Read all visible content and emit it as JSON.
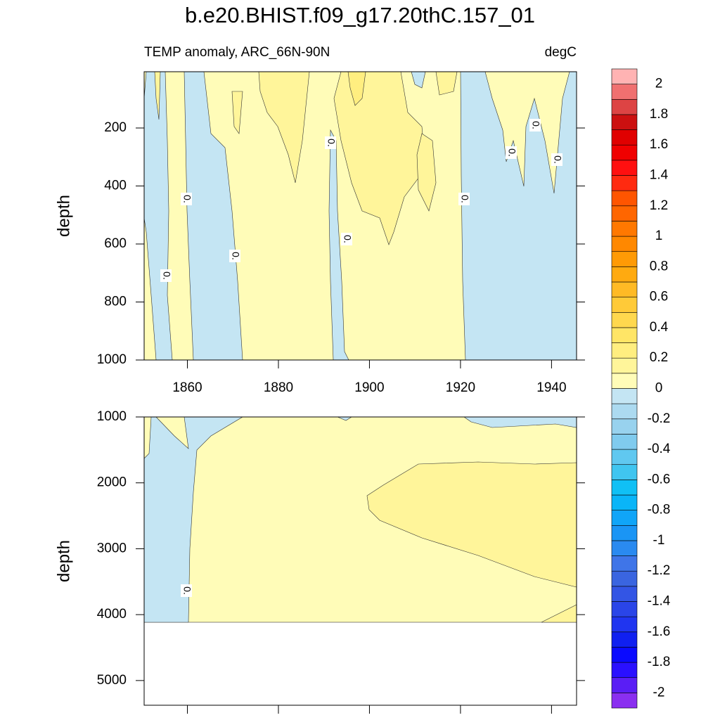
{
  "chart_data": {
    "type": "contour",
    "title": "b.e20.BHIST.f09_g17.20thC.157_01",
    "subtitle_left": "TEMP anomaly, ARC_66N-90N",
    "subtitle_right": "degC",
    "contour_label": "0.",
    "panels": [
      {
        "ylabel": "depth",
        "xlim": [
          1850.5,
          1945.5
        ],
        "xticks": [
          1860,
          1880,
          1900,
          1920,
          1940
        ],
        "show_xtick_labels": true,
        "ylim": [
          6,
          1000
        ],
        "y_reversed": true,
        "yticks": [
          200,
          400,
          600,
          800,
          1000
        ]
      },
      {
        "ylabel": "depth",
        "xlim": [
          1850.5,
          1945.5
        ],
        "xticks": [
          1860,
          1880,
          1900,
          1920,
          1940
        ],
        "show_xtick_labels": false,
        "ylim": [
          1000,
          5375
        ],
        "y_reversed": true,
        "yticks": [
          1000,
          2000,
          3000,
          4000,
          5000
        ]
      }
    ],
    "colorbar": {
      "levels": [
        -2,
        -1.9,
        -1.8,
        -1.7,
        -1.6,
        -1.5,
        -1.4,
        -1.3,
        -1.2,
        -1.1,
        -1,
        -0.9,
        -0.8,
        -0.7,
        -0.6,
        -0.5,
        -0.4,
        -0.3,
        -0.2,
        -0.1,
        0,
        0.1,
        0.2,
        0.3,
        0.4,
        0.5,
        0.6,
        0.7,
        0.8,
        0.9,
        1,
        1.1,
        1.2,
        1.3,
        1.4,
        1.5,
        1.6,
        1.7,
        1.8,
        1.9,
        2
      ],
      "ticks": [
        2,
        1.8,
        1.6,
        1.4,
        1.2,
        1,
        0.8,
        0.6,
        0.4,
        0.2,
        0,
        -0.2,
        -0.4,
        -0.6,
        -0.8,
        -1,
        -1.2,
        -1.4,
        -1.6,
        -1.8,
        -2
      ],
      "colors": [
        "#8a2ff0",
        "#5a1ef5",
        "#2a10ff",
        "#0a0aff",
        "#1020f0",
        "#2035f0",
        "#2a45e8",
        "#3355e5",
        "#3a65e0",
        "#3f75e8",
        "#2a8af0",
        "#1a95f5",
        "#10a5f8",
        "#0ab5f8",
        "#10c0f5",
        "#40c5f0",
        "#60c8f0",
        "#80cbee",
        "#98d2ee",
        "#acdaf0",
        "#c4e5f3",
        "#fffcb8",
        "#fff59a",
        "#ffee80",
        "#ffe566",
        "#ffd84e",
        "#ffca38",
        "#ffba25",
        "#ffaa10",
        "#ff9a05",
        "#ff8800",
        "#ff7800",
        "#ff6600",
        "#ff5500",
        "#ff2a10",
        "#ff1010",
        "#f00000",
        "#e00000",
        "#cc1010",
        "#dd4444",
        "#f07070",
        "#ffb3b3"
      ]
    }
  }
}
